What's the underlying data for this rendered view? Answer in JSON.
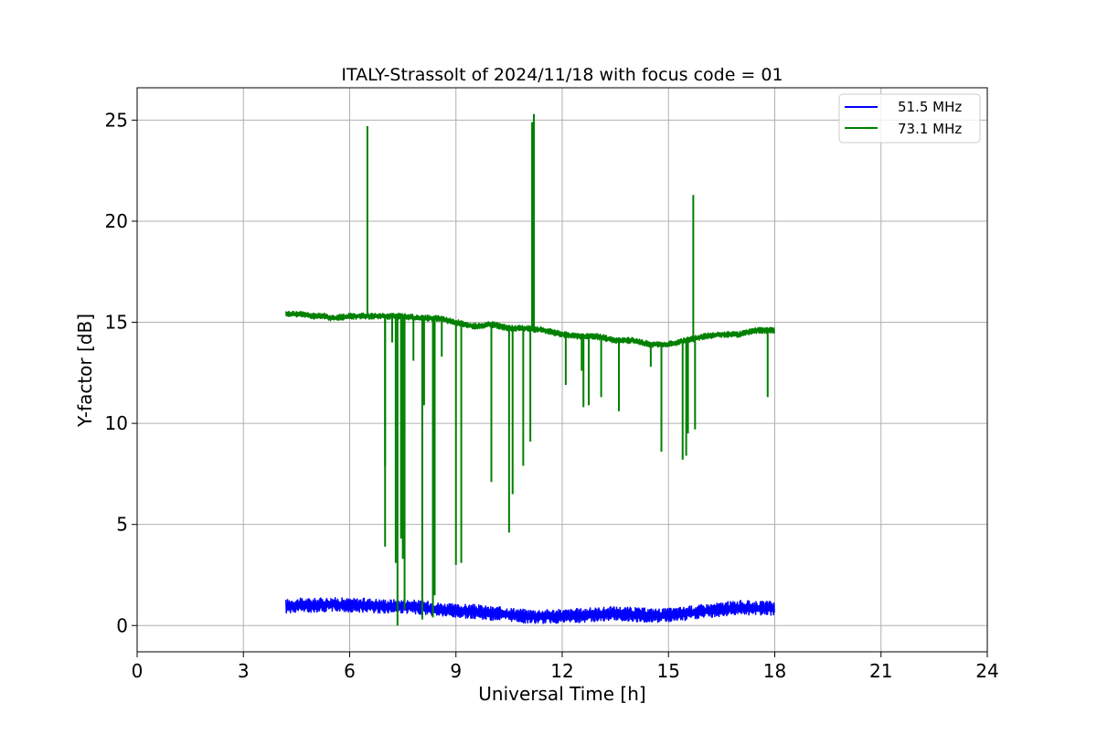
{
  "chart_data": {
    "type": "line",
    "title": "ITALY-Strassolt of 2024/11/18 with focus code = 01",
    "xlabel": "Universal Time [h]",
    "ylabel": "Y-factor [dB]",
    "xlim": [
      0,
      24
    ],
    "ylim": [
      -1.3,
      26.6
    ],
    "xticks": [
      0,
      3,
      6,
      9,
      12,
      15,
      18,
      21,
      24
    ],
    "yticks": [
      0,
      5,
      10,
      15,
      20,
      25
    ],
    "grid": true,
    "legend_position": "top-right",
    "series": [
      {
        "name": "51.5 MHz",
        "color": "#0000ff",
        "band": 0.35,
        "x": [
          4.2,
          4.6,
          5.0,
          5.5,
          6.0,
          6.5,
          7.0,
          7.5,
          8.0,
          8.5,
          9.0,
          9.5,
          10.0,
          10.5,
          11.0,
          11.5,
          12.0,
          12.5,
          13.0,
          13.5,
          14.0,
          14.5,
          15.0,
          15.5,
          16.0,
          16.5,
          17.0,
          17.5,
          18.0
        ],
        "y": [
          0.95,
          1.0,
          1.0,
          1.05,
          1.0,
          1.0,
          0.95,
          0.95,
          0.9,
          0.8,
          0.7,
          0.7,
          0.6,
          0.55,
          0.45,
          0.45,
          0.45,
          0.5,
          0.55,
          0.6,
          0.55,
          0.5,
          0.5,
          0.6,
          0.7,
          0.8,
          0.9,
          0.85,
          0.85
        ]
      },
      {
        "name": "73.1 MHz",
        "color": "#008000",
        "band": 0.15,
        "x": [
          4.2,
          4.6,
          5.0,
          5.3,
          5.5,
          6.0,
          6.5,
          7.0,
          7.5,
          8.0,
          8.5,
          9.0,
          9.5,
          10.0,
          10.5,
          11.0,
          11.5,
          12.0,
          12.5,
          13.0,
          13.5,
          14.0,
          14.5,
          15.0,
          15.5,
          16.0,
          16.5,
          17.0,
          17.5,
          18.0
        ],
        "y": [
          15.4,
          15.4,
          15.3,
          15.3,
          15.2,
          15.3,
          15.3,
          15.3,
          15.3,
          15.2,
          15.2,
          15.0,
          14.8,
          14.9,
          14.7,
          14.7,
          14.6,
          14.4,
          14.3,
          14.3,
          14.1,
          14.1,
          13.9,
          13.9,
          14.1,
          14.3,
          14.4,
          14.4,
          14.6,
          14.6
        ],
        "excursions": [
          [
            6.5,
            24.7
          ],
          [
            7.0,
            3.9
          ],
          [
            7.0,
            7.9
          ],
          [
            7.2,
            14.0
          ],
          [
            7.3,
            3.1
          ],
          [
            7.35,
            0.0
          ],
          [
            7.45,
            4.3
          ],
          [
            7.5,
            3.3
          ],
          [
            7.55,
            0.8
          ],
          [
            7.8,
            13.1
          ],
          [
            8.05,
            0.3
          ],
          [
            8.1,
            10.9
          ],
          [
            8.35,
            0.4
          ],
          [
            8.4,
            1.5
          ],
          [
            8.6,
            13.3
          ],
          [
            9.0,
            3.0
          ],
          [
            9.15,
            3.1
          ],
          [
            10.0,
            7.1
          ],
          [
            10.5,
            4.6
          ],
          [
            10.6,
            6.5
          ],
          [
            10.9,
            7.9
          ],
          [
            11.1,
            9.1
          ],
          [
            11.15,
            24.9
          ],
          [
            11.2,
            25.3
          ],
          [
            12.1,
            11.9
          ],
          [
            12.55,
            12.6
          ],
          [
            12.6,
            10.8
          ],
          [
            12.75,
            10.9
          ],
          [
            13.1,
            11.3
          ],
          [
            13.6,
            10.6
          ],
          [
            14.5,
            12.8
          ],
          [
            14.8,
            8.6
          ],
          [
            15.4,
            8.2
          ],
          [
            15.5,
            8.4
          ],
          [
            15.55,
            9.5
          ],
          [
            15.7,
            21.3
          ],
          [
            15.75,
            9.7
          ],
          [
            17.8,
            11.3
          ]
        ]
      }
    ]
  }
}
